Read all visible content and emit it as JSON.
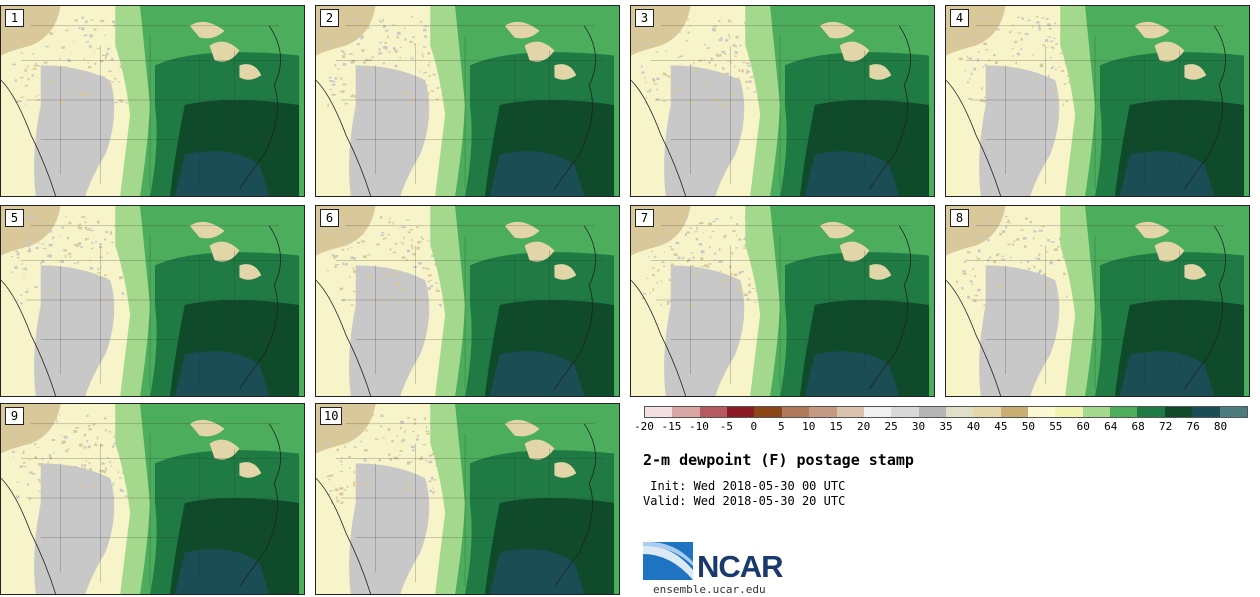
{
  "panels": [
    {
      "label": "1"
    },
    {
      "label": "2"
    },
    {
      "label": "3"
    },
    {
      "label": "4"
    },
    {
      "label": "5"
    },
    {
      "label": "6"
    },
    {
      "label": "7"
    },
    {
      "label": "8"
    },
    {
      "label": "9"
    },
    {
      "label": "10"
    }
  ],
  "colorbar": {
    "ticks": [
      "-20",
      "-15",
      "-10",
      "-5",
      "0",
      "5",
      "10",
      "15",
      "20",
      "25",
      "30",
      "35",
      "40",
      "45",
      "50",
      "55",
      "60",
      "64",
      "68",
      "72",
      "76",
      "80"
    ],
    "colors": [
      "#f3e1e1",
      "#d9a6a6",
      "#b55a60",
      "#8b1a24",
      "#8b4516",
      "#b07a5a",
      "#c49a82",
      "#dcc3ad",
      "#f0f0f0",
      "#d9d9d9",
      "#b5b5b5",
      "#e0dfc9",
      "#e5d9ab",
      "#c9ae72",
      "#fbf8d4",
      "#f0f4b0",
      "#a4d88c",
      "#4cad5c",
      "#1f7a43",
      "#0f4a2a",
      "#1a4d54",
      "#4c7c7e"
    ]
  },
  "title": "2-m dewpoint (F) postage stamp",
  "init_line": " Init: Wed 2018-05-30 00 UTC",
  "valid_line": "Valid: Wed 2018-05-30 20 UTC",
  "logo_text": "NCAR",
  "url": "ensemble.ucar.edu",
  "colors": {
    "dry": "#f6f4c8",
    "tan": "#d9c89a",
    "gray": "#c8c8c8",
    "light_green": "#a4d88c",
    "mid_green": "#4cad5c",
    "green": "#1f7a43",
    "dark_green": "#0f4a2a",
    "teal": "#1a4d54",
    "water": "#1f6d44",
    "lake": "#e2d5a8"
  }
}
